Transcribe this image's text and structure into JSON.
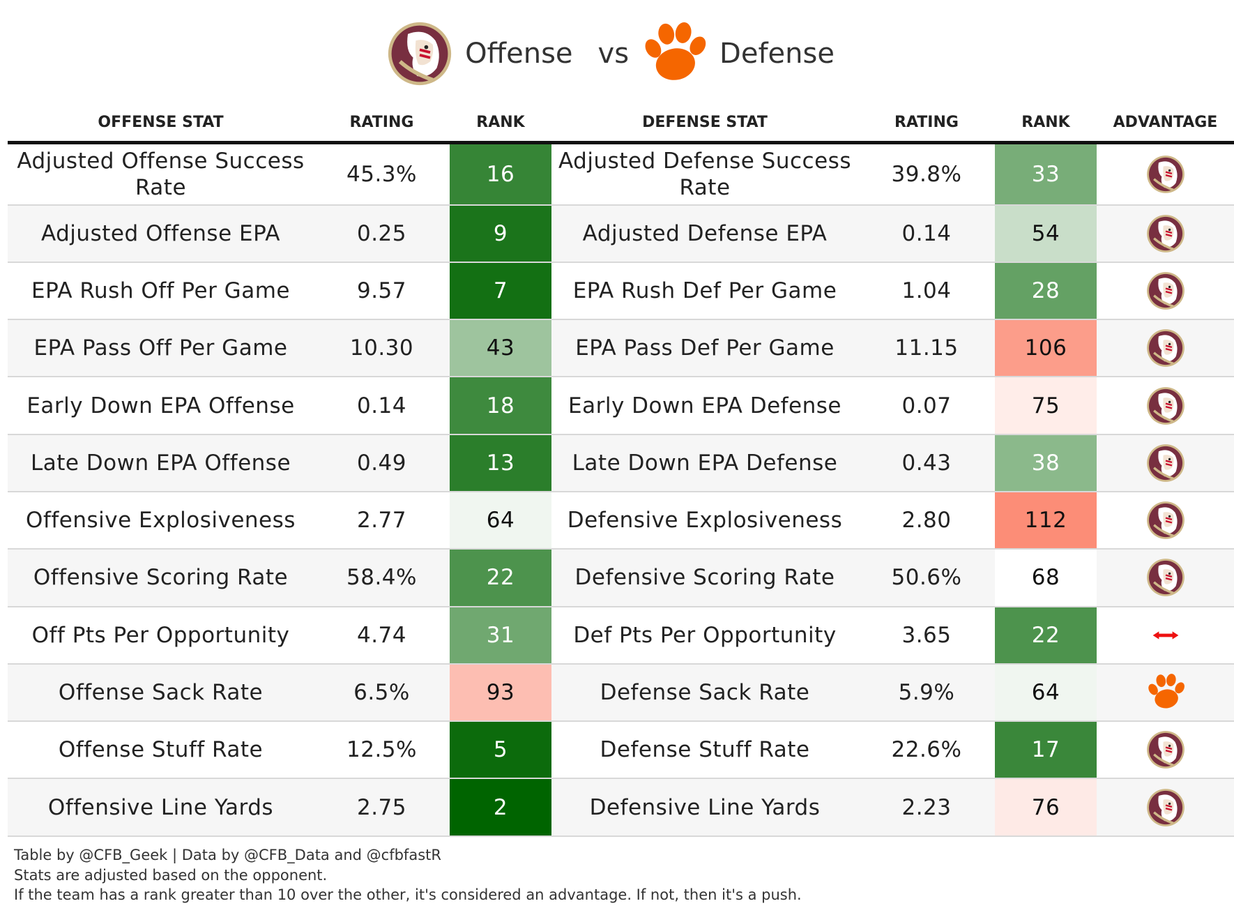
{
  "header": {
    "offense": "Offense",
    "vs": "vs",
    "defense": "Defense"
  },
  "table": {
    "columns": [
      "OFFENSE STAT",
      "RATING",
      "RANK",
      "DEFENSE STAT",
      "RATING",
      "RANK",
      "ADVANTAGE"
    ],
    "rows": [
      [
        "Adjusted Offense Success Rate",
        "45.3%",
        16,
        "Adjusted Defense Success Rate",
        "39.8%",
        33
      ],
      [
        "Adjusted Offense EPA",
        "0.25",
        9,
        "Adjusted Defense EPA",
        "0.14",
        54
      ],
      [
        "EPA Rush Off Per Game",
        "9.57",
        7,
        "EPA Rush Def Per Game",
        "1.04",
        28
      ],
      [
        "EPA Pass Off Per Game",
        "10.30",
        43,
        "EPA Pass Def Per Game",
        "11.15",
        106
      ],
      [
        "Early Down EPA Offense",
        "0.14",
        18,
        "Early Down EPA Defense",
        "0.07",
        75
      ],
      [
        "Late Down EPA Offense",
        "0.49",
        13,
        "Late Down EPA Defense",
        "0.43",
        38
      ],
      [
        "Offensive Explosiveness",
        "2.77",
        64,
        "Defensive Explosiveness",
        "2.80",
        112
      ],
      [
        "Offensive Scoring Rate",
        "58.4%",
        22,
        "Defensive Scoring Rate",
        "50.6%",
        68
      ],
      [
        "Off Pts Per Opportunity",
        "4.74",
        31,
        "Def Pts Per Opportunity",
        "3.65",
        22
      ],
      [
        "Offense Sack Rate",
        "6.5%",
        93,
        "Defense Sack Rate",
        "5.9%",
        64
      ],
      [
        "Offense Stuff Rate",
        "12.5%",
        5,
        "Defense Stuff Rate",
        "22.6%",
        17
      ],
      [
        "Offensive Line Yards",
        "2.75",
        2,
        "Defensive Line Yards",
        "2.23",
        76
      ]
    ]
  },
  "footer": [
    "Table by @CFB_Geek | Data by @CFB_Data and @cfbfastR",
    "Stats are adjusted based on the opponent.",
    "If the team has a rank greater than 10 over the other, it's considered an advantage. If not, then it's a push."
  ]
}
